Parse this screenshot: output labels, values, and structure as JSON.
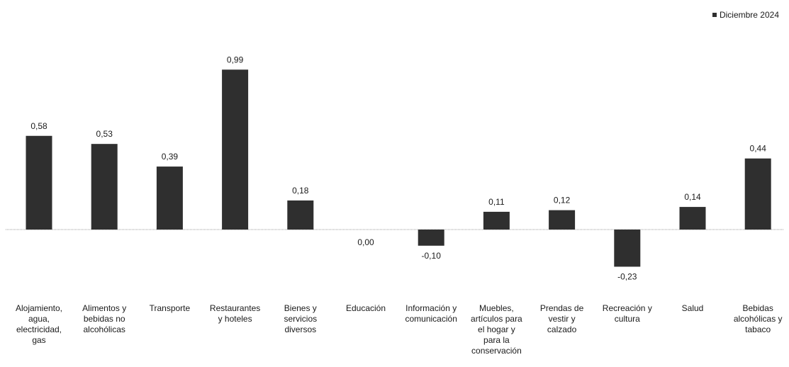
{
  "chart_data": {
    "type": "bar",
    "legend": "top-right",
    "grid": false,
    "ylim": [
      -0.3,
      1.0
    ],
    "categories": [
      "Alojamiento,\nagua,\nelectricidad,\ngas",
      "Alimentos y\nbebidas no\nalcohólicas",
      "Transporte",
      "Restaurantes\ny hoteles",
      "Bienes y\nservicios\ndiversos",
      "Educación",
      "Información y\ncomunicación",
      "Muebles,\nartículos para\nel hogar y\npara la\nconservación",
      "Prendas de\nvestir y\ncalzado",
      "Recreación y\ncultura",
      "Salud",
      "Bebidas\nalcohólicas y\ntabaco"
    ],
    "series": [
      {
        "name": "Diciembre 2024",
        "color": "#2f2f2f",
        "values": [
          0.58,
          0.53,
          0.39,
          0.99,
          0.18,
          0.0,
          -0.1,
          0.11,
          0.12,
          -0.23,
          0.14,
          0.44
        ],
        "labels": [
          "0,58",
          "0,53",
          "0,39",
          "0,99",
          "0,18",
          "0,00",
          "-0,10",
          "0,11",
          "0,12",
          "-0,23",
          "0,14",
          "0,44"
        ]
      }
    ]
  }
}
